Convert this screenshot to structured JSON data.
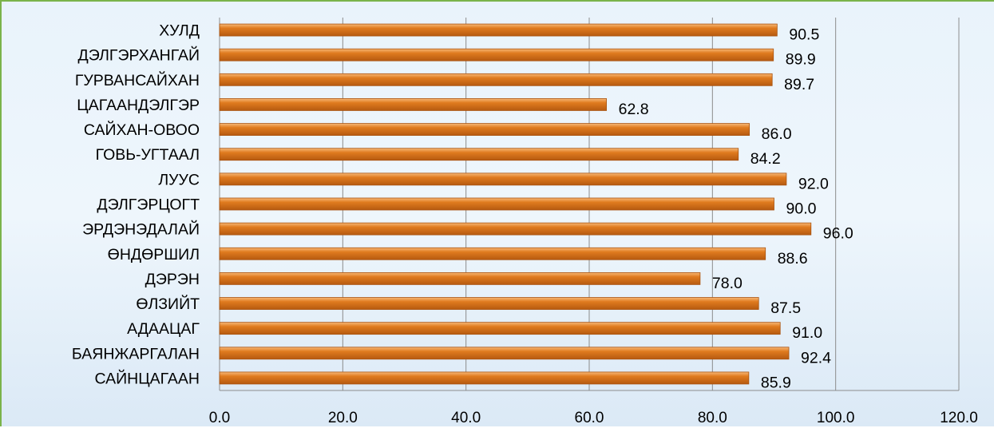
{
  "chart_data": {
    "type": "bar",
    "orientation": "horizontal",
    "categories": [
      "ХУЛД",
      "ДЭЛГЭРХАНГАЙ",
      "ГУРВАНСАЙХАН",
      "ЦАГААНДЭЛГЭР",
      "САЙХАН-ОВОО",
      "ГОВЬ-УГТААЛ",
      "ЛУУС",
      "ДЭЛГЭРЦОГТ",
      "ЭРДЭНЭДАЛАЙ",
      "ӨНДӨРШИЛ",
      "ДЭРЭН",
      "ӨЛЗИЙТ",
      "АДААЦАГ",
      "БАЯНЖАРГАЛАН",
      "САЙНЦАГААН"
    ],
    "values": [
      90.5,
      89.9,
      89.7,
      62.8,
      86.0,
      84.2,
      92.0,
      90.0,
      96.0,
      88.6,
      78.0,
      87.5,
      91.0,
      92.4,
      85.9
    ],
    "value_labels": [
      "90.5",
      "89.9",
      "89.7",
      "62.8",
      "86.0",
      "84.2",
      "92.0",
      "90.0",
      "96.0",
      "88.6",
      "78.0",
      "87.5",
      "91.0",
      "92.4",
      "85.9"
    ],
    "xlim": [
      0,
      120
    ],
    "xticks": [
      "0.0",
      "20.0",
      "40.0",
      "60.0",
      "80.0",
      "100.0",
      "120.0"
    ],
    "title": "",
    "xlabel": "",
    "ylabel": "",
    "grid": "vertical",
    "legend": "none",
    "bar_color": "#e07b1f",
    "bar_highlight": "#f7b877",
    "grid_color": "#8c8c8c",
    "frame_border_color": "#7ab34a"
  }
}
